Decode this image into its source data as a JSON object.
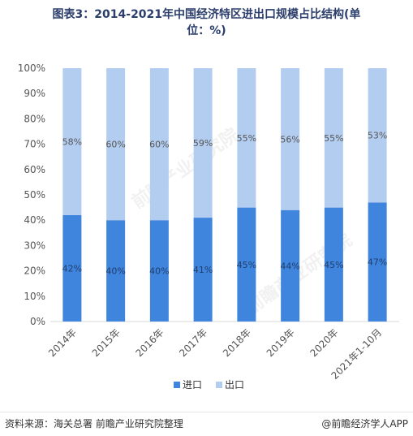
{
  "title_line1": "图表3：2014-2021年中国经济特区进出口规模占比结构(单",
  "title_line2": "位：%)",
  "footer": {
    "source": "资料来源：海关总署 前瞻产业研究院整理",
    "brand": "@前瞻经济学人APP"
  },
  "watermark": "前瞻产业研究院",
  "colors": {
    "import": "#3f84dd",
    "export": "#b3cdf0",
    "grid": "#d9d9d9"
  },
  "chart_data": {
    "type": "bar",
    "stacked": true,
    "title": "图表3：2014-2021年中国经济特区进出口规模占比结构(单位：%)",
    "categories": [
      "2014年",
      "2015年",
      "2016年",
      "2017年",
      "2018年",
      "2019年",
      "2020年",
      "2021年1-10月"
    ],
    "series": [
      {
        "name": "进口",
        "values": [
          42,
          40,
          40,
          41,
          45,
          44,
          45,
          47
        ],
        "labels": [
          "42%",
          "40%",
          "40%",
          "41%",
          "45%",
          "44%",
          "45%",
          "47%"
        ]
      },
      {
        "name": "出口",
        "values": [
          58,
          60,
          60,
          59,
          55,
          56,
          55,
          53
        ],
        "labels": [
          "58%",
          "60%",
          "60%",
          "59%",
          "55%",
          "56%",
          "55%",
          "53%"
        ]
      }
    ],
    "yticks": [
      "0%",
      "10%",
      "20%",
      "30%",
      "40%",
      "50%",
      "60%",
      "70%",
      "80%",
      "90%",
      "100%"
    ],
    "ylim": [
      0,
      100
    ],
    "grid": false,
    "legend": "bottom"
  }
}
